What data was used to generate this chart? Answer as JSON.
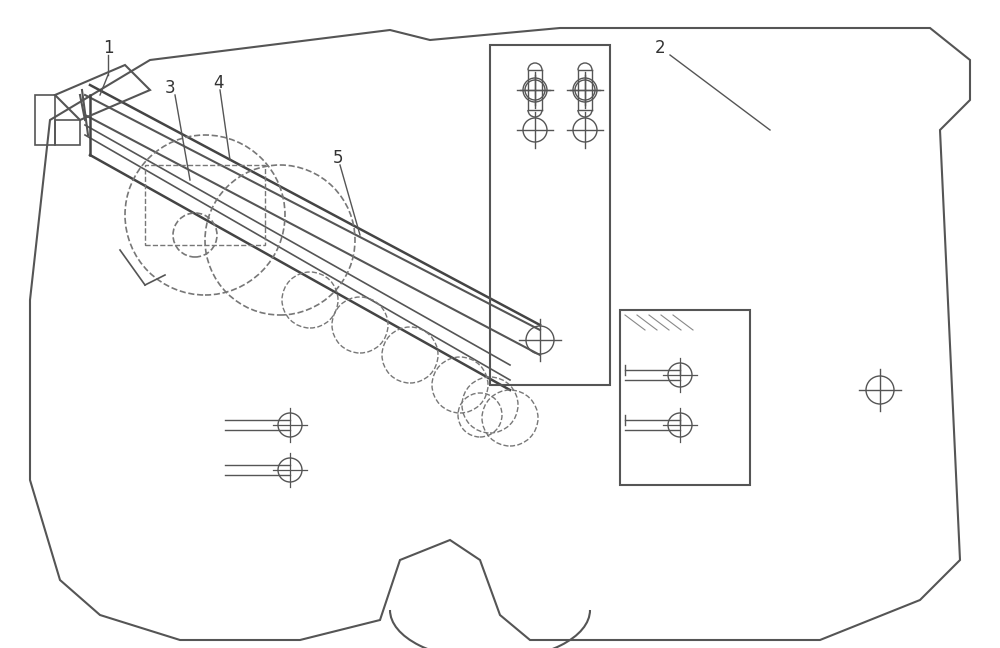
{
  "bg_color": "#ffffff",
  "line_color": "#555555",
  "dashed_color": "#777777",
  "label_color": "#222222",
  "fig_width": 10.0,
  "fig_height": 6.48,
  "dpi": 100
}
